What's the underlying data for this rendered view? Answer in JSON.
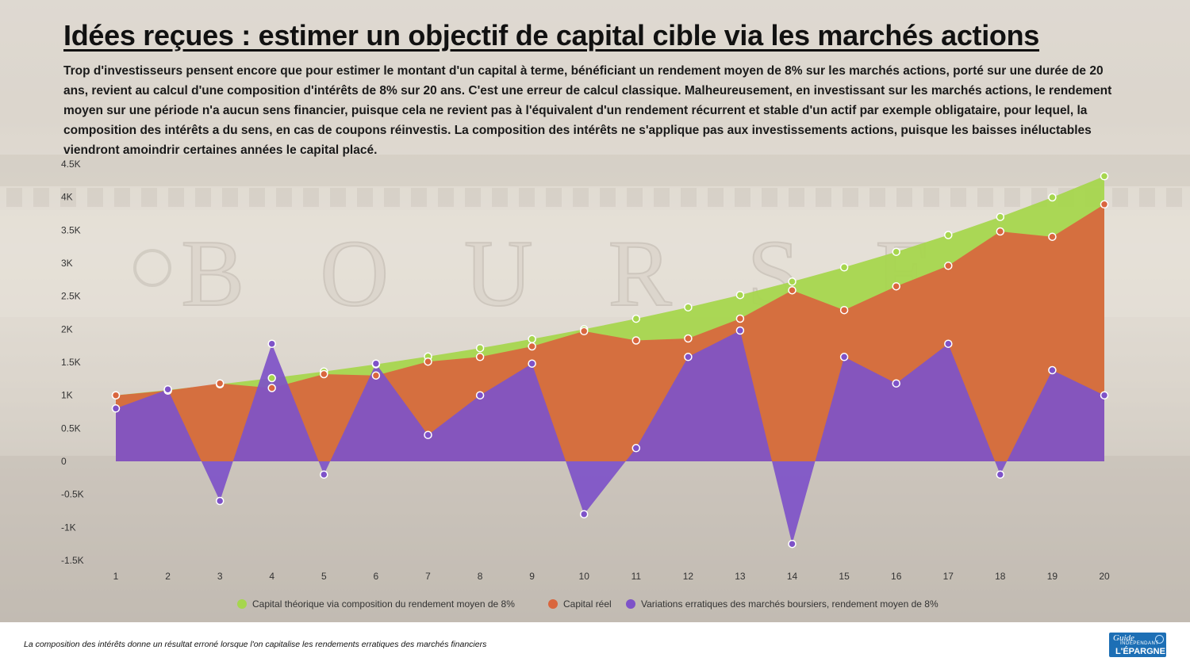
{
  "header": {
    "title": "Idées reçues : estimer un objectif de capital cible via les marchés actions",
    "intro": "Trop d'investisseurs pensent encore que pour estimer le montant d'un capital à terme, bénéficiant un rendement moyen de 8% sur les marchés actions, porté sur une durée de 20 ans, revient au calcul d'une composition d'intérêts de 8% sur 20 ans. C'est une erreur de calcul classique. Malheureusement, en investissant sur les marchés actions, le rendement moyen sur une période n'a aucun sens financier, puisque cela ne revient pas à l'équivalent d'un rendement récurrent et stable d'un actif par exemple obligataire, pour lequel, la composition des intérêts a du sens, en cas de coupons réinvestis. La composition des intérêts ne s'applique pas aux investissements actions, puisque les baisses inéluctables viendront amoindrir certaines années le capital placé."
  },
  "background": {
    "carved_word": "BOURSE"
  },
  "chart_data": {
    "type": "area",
    "x": [
      1,
      2,
      3,
      4,
      5,
      6,
      7,
      8,
      9,
      10,
      11,
      12,
      13,
      14,
      15,
      16,
      17,
      18,
      19,
      20
    ],
    "ylim": [
      -1500,
      4500
    ],
    "yticks": [
      -1500,
      -1000,
      -500,
      0,
      500,
      1000,
      1500,
      2000,
      2500,
      3000,
      3500,
      4000,
      4500
    ],
    "ytick_labels": [
      "-1.5K",
      "-1K",
      "-0.5K",
      "0",
      "0.5K",
      "1K",
      "1.5K",
      "2K",
      "2.5K",
      "3K",
      "3.5K",
      "4K",
      "4.5K"
    ],
    "legend_position": "bottom-center",
    "grid": false,
    "series": [
      {
        "name": "Capital théorique via composition du rendement moyen de 8%",
        "color": "#a6d64e",
        "values": [
          1000,
          1080,
          1166,
          1260,
          1360,
          1469,
          1587,
          1714,
          1851,
          1999,
          2159,
          2332,
          2518,
          2720,
          2937,
          3172,
          3426,
          3700,
          3996,
          4316
        ]
      },
      {
        "name": "Capital réel",
        "color": "#d9663e",
        "values": [
          1000,
          1070,
          1180,
          1110,
          1320,
          1300,
          1510,
          1580,
          1740,
          1970,
          1830,
          1860,
          2160,
          2590,
          2290,
          2650,
          2960,
          3480,
          3400,
          3890
        ]
      },
      {
        "name": "Variations erratiques des marchés boursiers, rendement moyen de 8%",
        "color": "#7e52c8",
        "values": [
          800,
          1090,
          -600,
          1780,
          -200,
          1480,
          400,
          1000,
          1480,
          -800,
          200,
          1580,
          1980,
          -1250,
          1580,
          1180,
          1780,
          -200,
          1380,
          1000
        ]
      }
    ]
  },
  "footer": {
    "caption": "La composition des intérêts donne un résultat erroné lorsque l'on capitalise les rendements erratiques des marchés financiers",
    "logo": {
      "line1": "Guide",
      "line2": "INDÉPENDANT",
      "line3": "L'ÉPARGNE"
    }
  }
}
